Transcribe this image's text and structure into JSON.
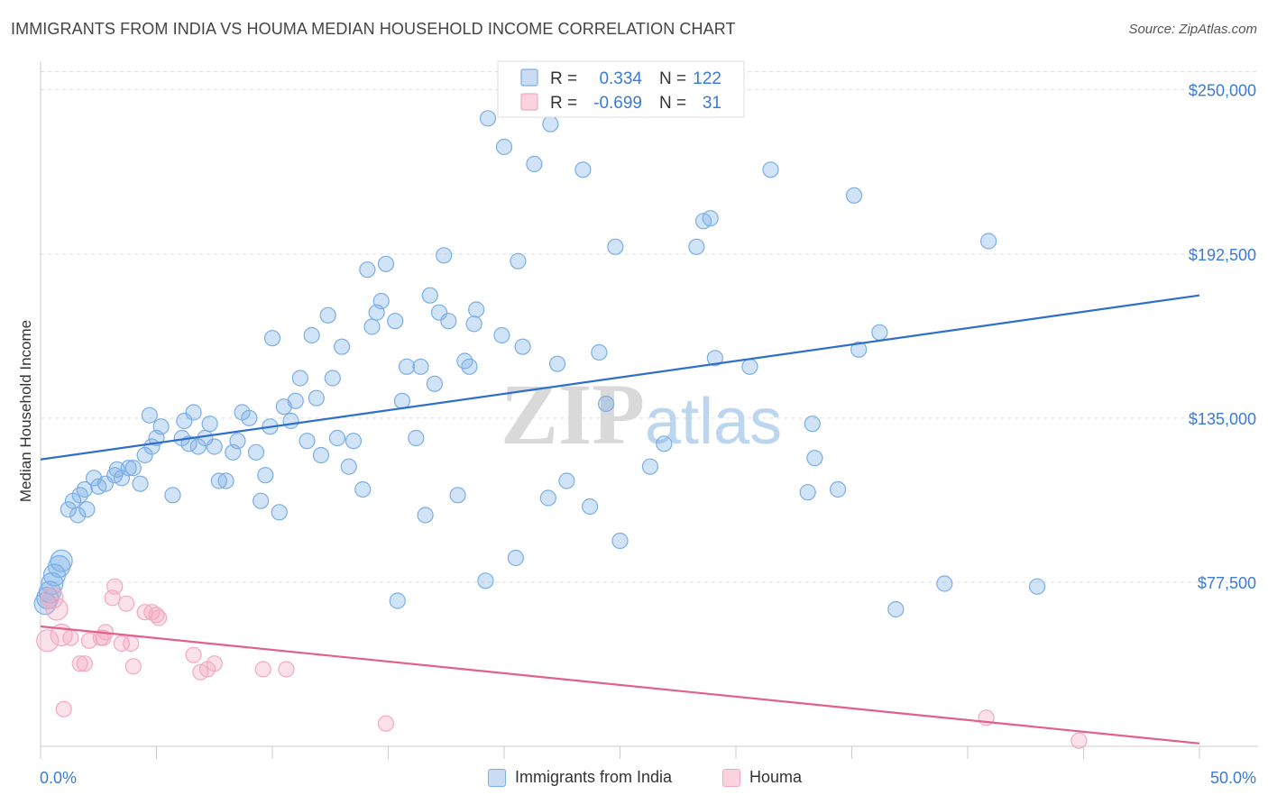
{
  "title": "IMMIGRANTS FROM INDIA VS HOUMA MEDIAN HOUSEHOLD INCOME CORRELATION CHART",
  "source": "Source: ZipAtlas.com",
  "watermark": {
    "zip": "ZIP",
    "atlas": "atlas"
  },
  "chart_data": {
    "type": "scatter",
    "title": "IMMIGRANTS FROM INDIA VS HOUMA MEDIAN HOUSEHOLD INCOME CORRELATION CHART",
    "xlabel": "",
    "ylabel": "Median Household Income",
    "xlim": [
      0,
      50
    ],
    "ylim": [
      20000,
      260000
    ],
    "x_tick_labels": {
      "min": "0.0%",
      "max": "50.0%"
    },
    "y_ticks": [
      {
        "value": 77500,
        "label": "$77,500"
      },
      {
        "value": 135000,
        "label": "$135,000"
      },
      {
        "value": 192500,
        "label": "$192,500"
      },
      {
        "value": 250000,
        "label": "$250,000"
      }
    ],
    "colors": {
      "india": "#7aaee6",
      "india_line": "#2f6fcc",
      "houma": "#f4a8c0",
      "houma_line": "#e0608f",
      "axis_label": "#3a7bd5"
    },
    "stats_legend": [
      {
        "series": "india",
        "r_label": "R =",
        "r_value": "0.334",
        "n_label": "N =",
        "n_value": "122"
      },
      {
        "series": "houma",
        "r_label": "R =",
        "r_value": "-0.699",
        "n_label": "N =",
        "n_value": "31"
      }
    ],
    "series": [
      {
        "name": "Immigrants from India",
        "key": "india",
        "trend": {
          "x": [
            0,
            50
          ],
          "y": [
            120500,
            178000
          ]
        },
        "points": [
          [
            0.2,
            70000
          ],
          [
            0.3,
            72000
          ],
          [
            0.5,
            77000
          ],
          [
            0.6,
            80000
          ],
          [
            0.8,
            83000
          ],
          [
            0.9,
            85000
          ],
          [
            1.2,
            103000
          ],
          [
            1.4,
            106000
          ],
          [
            1.6,
            101000
          ],
          [
            1.7,
            108000
          ],
          [
            1.9,
            110000
          ],
          [
            2.0,
            103000
          ],
          [
            2.3,
            114000
          ],
          [
            2.5,
            111000
          ],
          [
            2.8,
            112000
          ],
          [
            3.2,
            115000
          ],
          [
            3.3,
            117000
          ],
          [
            3.5,
            114000
          ],
          [
            3.8,
            117500
          ],
          [
            4.0,
            117500
          ],
          [
            4.3,
            112000
          ],
          [
            4.5,
            122000
          ],
          [
            4.7,
            136000
          ],
          [
            4.8,
            125000
          ],
          [
            5.0,
            128000
          ],
          [
            5.2,
            132000
          ],
          [
            5.7,
            108000
          ],
          [
            6.1,
            128000
          ],
          [
            6.2,
            134000
          ],
          [
            6.4,
            126000
          ],
          [
            6.6,
            137000
          ],
          [
            6.8,
            125000
          ],
          [
            7.1,
            128000
          ],
          [
            7.3,
            133000
          ],
          [
            7.5,
            125000
          ],
          [
            7.7,
            113000
          ],
          [
            8.0,
            113000
          ],
          [
            8.3,
            123000
          ],
          [
            8.5,
            127000
          ],
          [
            8.7,
            137000
          ],
          [
            9.0,
            135000
          ],
          [
            9.3,
            123000
          ],
          [
            9.5,
            106000
          ],
          [
            9.7,
            115000
          ],
          [
            9.9,
            132000
          ],
          [
            10.0,
            163000
          ],
          [
            10.3,
            102000
          ],
          [
            10.5,
            139000
          ],
          [
            10.8,
            134000
          ],
          [
            11.0,
            141000
          ],
          [
            11.2,
            149000
          ],
          [
            11.5,
            127000
          ],
          [
            11.7,
            164000
          ],
          [
            11.9,
            142000
          ],
          [
            12.1,
            122000
          ],
          [
            12.4,
            171000
          ],
          [
            12.6,
            149000
          ],
          [
            12.8,
            128000
          ],
          [
            13.0,
            160000
          ],
          [
            13.3,
            118000
          ],
          [
            13.5,
            127000
          ],
          [
            13.9,
            110000
          ],
          [
            14.1,
            187000
          ],
          [
            14.3,
            167000
          ],
          [
            14.5,
            172000
          ],
          [
            14.7,
            176000
          ],
          [
            14.9,
            189000
          ],
          [
            15.3,
            169000
          ],
          [
            15.4,
            71000
          ],
          [
            15.6,
            141000
          ],
          [
            15.8,
            153000
          ],
          [
            16.2,
            128000
          ],
          [
            16.4,
            153000
          ],
          [
            16.6,
            101000
          ],
          [
            16.8,
            178000
          ],
          [
            17.0,
            147000
          ],
          [
            17.2,
            172000
          ],
          [
            17.4,
            192000
          ],
          [
            17.6,
            169000
          ],
          [
            18.0,
            108000
          ],
          [
            18.3,
            155000
          ],
          [
            18.5,
            153000
          ],
          [
            18.7,
            168000
          ],
          [
            18.8,
            173000
          ],
          [
            19.2,
            78000
          ],
          [
            19.3,
            240000
          ],
          [
            19.9,
            164000
          ],
          [
            20.0,
            230000
          ],
          [
            20.5,
            86000
          ],
          [
            20.6,
            190000
          ],
          [
            20.8,
            160000
          ],
          [
            21.3,
            224000
          ],
          [
            21.9,
            107000
          ],
          [
            22.0,
            238000
          ],
          [
            22.3,
            154000
          ],
          [
            22.7,
            113000
          ],
          [
            23.4,
            222000
          ],
          [
            23.7,
            104000
          ],
          [
            24.1,
            158000
          ],
          [
            24.4,
            140000
          ],
          [
            24.8,
            195000
          ],
          [
            25.0,
            92000
          ],
          [
            26.3,
            118000
          ],
          [
            26.9,
            126000
          ],
          [
            28.3,
            195000
          ],
          [
            28.6,
            204000
          ],
          [
            28.9,
            205000
          ],
          [
            29.1,
            156000
          ],
          [
            30.6,
            153000
          ],
          [
            31.5,
            222000
          ],
          [
            33.1,
            109000
          ],
          [
            33.3,
            133000
          ],
          [
            33.4,
            121000
          ],
          [
            34.4,
            110000
          ],
          [
            35.1,
            213000
          ],
          [
            35.3,
            159000
          ],
          [
            36.2,
            165000
          ],
          [
            36.9,
            68000
          ],
          [
            39.0,
            77000
          ],
          [
            40.9,
            197000
          ],
          [
            43.0,
            76000
          ],
          [
            0.4,
            74000
          ]
        ]
      },
      {
        "name": "Houma",
        "key": "houma",
        "trend": {
          "x": [
            0,
            50
          ],
          "y": [
            62000,
            21000
          ]
        },
        "points": [
          [
            0.3,
            57000
          ],
          [
            0.5,
            72000
          ],
          [
            0.7,
            68000
          ],
          [
            0.9,
            59000
          ],
          [
            1.0,
            33000
          ],
          [
            1.3,
            58000
          ],
          [
            1.7,
            49000
          ],
          [
            1.9,
            49000
          ],
          [
            2.1,
            57000
          ],
          [
            2.6,
            58000
          ],
          [
            2.7,
            58000
          ],
          [
            2.8,
            60000
          ],
          [
            3.1,
            72000
          ],
          [
            3.2,
            76000
          ],
          [
            3.5,
            56000
          ],
          [
            3.7,
            70000
          ],
          [
            3.9,
            56000
          ],
          [
            4.0,
            48000
          ],
          [
            4.8,
            67000
          ],
          [
            5.0,
            66000
          ],
          [
            5.1,
            65000
          ],
          [
            6.6,
            52000
          ],
          [
            6.9,
            46000
          ],
          [
            7.2,
            47000
          ],
          [
            7.5,
            49000
          ],
          [
            9.6,
            47000
          ],
          [
            10.6,
            47000
          ],
          [
            14.9,
            28000
          ],
          [
            40.8,
            30000
          ],
          [
            44.8,
            22000
          ],
          [
            4.5,
            67000
          ]
        ]
      }
    ]
  }
}
